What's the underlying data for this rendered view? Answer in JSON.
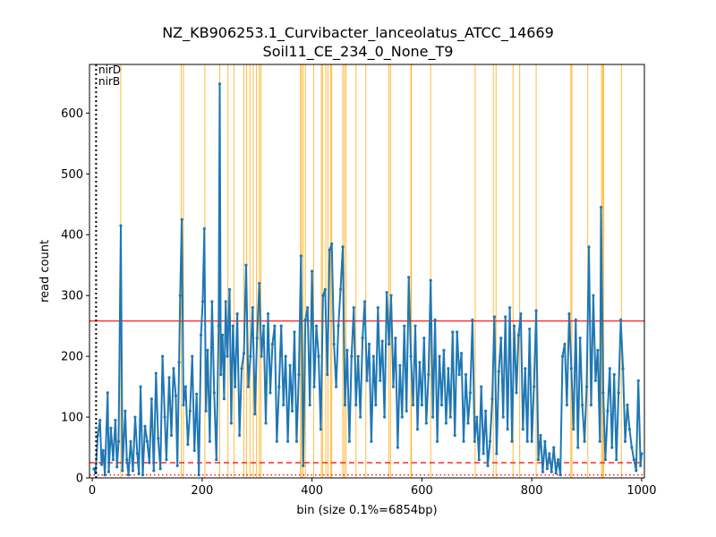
{
  "chart_data": {
    "type": "line",
    "title_lines": [
      "NZ_KB906253.1_Curvibacter_lanceolatus_ATCC_14669",
      "Soil11_CE_234_0_None_T9"
    ],
    "xlabel": "bin (size 0.1%=6854bp)",
    "ylabel": "read count",
    "xlim": [
      -5,
      1005
    ],
    "ylim": [
      0,
      680
    ],
    "xticks": [
      0,
      200,
      400,
      600,
      800,
      1000
    ],
    "yticks": [
      0,
      100,
      200,
      300,
      400,
      500,
      600
    ],
    "grid": false,
    "colors": {
      "series": "#1f77b4",
      "highlight": "#ffa500",
      "threshold": "#ff0000",
      "marker": "#000000"
    },
    "series": [
      {
        "points": [
          [
            3,
            15
          ],
          [
            6,
            8
          ],
          [
            10,
            70
          ],
          [
            14,
            95
          ],
          [
            17,
            22
          ],
          [
            20,
            45
          ],
          [
            23,
            5
          ],
          [
            28,
            140
          ],
          [
            30,
            10
          ],
          [
            34,
            82
          ],
          [
            38,
            30
          ],
          [
            42,
            95
          ],
          [
            45,
            18
          ],
          [
            48,
            60
          ],
          [
            52,
            415
          ],
          [
            55,
            12
          ],
          [
            60,
            110
          ],
          [
            63,
            30
          ],
          [
            66,
            5
          ],
          [
            70,
            60
          ],
          [
            74,
            12
          ],
          [
            78,
            100
          ],
          [
            82,
            40
          ],
          [
            85,
            7
          ],
          [
            88,
            150
          ],
          [
            92,
            5
          ],
          [
            96,
            85
          ],
          [
            100,
            60
          ],
          [
            104,
            25
          ],
          [
            108,
            130
          ],
          [
            112,
            12
          ],
          [
            116,
            172
          ],
          [
            120,
            65
          ],
          [
            124,
            15
          ],
          [
            128,
            200
          ],
          [
            132,
            100
          ],
          [
            135,
            30
          ],
          [
            140,
            165
          ],
          [
            144,
            70
          ],
          [
            148,
            180
          ],
          [
            152,
            135
          ],
          [
            155,
            20
          ],
          [
            158,
            190
          ],
          [
            160,
            300
          ],
          [
            163,
            425
          ],
          [
            166,
            120
          ],
          [
            170,
            150
          ],
          [
            174,
            55
          ],
          [
            178,
            110
          ],
          [
            182,
            200
          ],
          [
            186,
            45
          ],
          [
            190,
            138
          ],
          [
            194,
            5
          ],
          [
            198,
            235
          ],
          [
            201,
            290
          ],
          [
            204,
            410
          ],
          [
            207,
            110
          ],
          [
            210,
            210
          ],
          [
            214,
            60
          ],
          [
            218,
            290
          ],
          [
            222,
            140
          ],
          [
            226,
            30
          ],
          [
            230,
            250
          ],
          [
            232,
            648
          ],
          [
            234,
            170
          ],
          [
            237,
            235
          ],
          [
            240,
            130
          ],
          [
            243,
            290
          ],
          [
            246,
            200
          ],
          [
            250,
            310
          ],
          [
            253,
            90
          ],
          [
            256,
            250
          ],
          [
            260,
            150
          ],
          [
            264,
            270
          ],
          [
            268,
            70
          ],
          [
            272,
            180
          ],
          [
            276,
            205
          ],
          [
            280,
            350
          ],
          [
            284,
            150
          ],
          [
            288,
            200
          ],
          [
            292,
            280
          ],
          [
            296,
            105
          ],
          [
            300,
            230
          ],
          [
            304,
            320
          ],
          [
            308,
            200
          ],
          [
            312,
            250
          ],
          [
            316,
            90
          ],
          [
            320,
            270
          ],
          [
            324,
            140
          ],
          [
            328,
            220
          ],
          [
            332,
            250
          ],
          [
            336,
            60
          ],
          [
            340,
            150
          ],
          [
            344,
            250
          ],
          [
            348,
            120
          ],
          [
            352,
            200
          ],
          [
            356,
            60
          ],
          [
            360,
            185
          ],
          [
            364,
            110
          ],
          [
            368,
            240
          ],
          [
            372,
            60
          ],
          [
            376,
            170
          ],
          [
            380,
            365
          ],
          [
            384,
            20
          ],
          [
            388,
            260
          ],
          [
            392,
            280
          ],
          [
            396,
            120
          ],
          [
            400,
            340
          ],
          [
            404,
            150
          ],
          [
            408,
            250
          ],
          [
            412,
            200
          ],
          [
            416,
            80
          ],
          [
            420,
            300
          ],
          [
            424,
            310
          ],
          [
            428,
            170
          ],
          [
            432,
            375
          ],
          [
            436,
            385
          ],
          [
            440,
            220
          ],
          [
            444,
            150
          ],
          [
            448,
            250
          ],
          [
            452,
            310
          ],
          [
            456,
            380
          ],
          [
            460,
            120
          ],
          [
            464,
            210
          ],
          [
            468,
            60
          ],
          [
            472,
            200
          ],
          [
            476,
            280
          ],
          [
            480,
            120
          ],
          [
            484,
            200
          ],
          [
            488,
            100
          ],
          [
            492,
            230
          ],
          [
            496,
            290
          ],
          [
            500,
            160
          ],
          [
            504,
            220
          ],
          [
            508,
            60
          ],
          [
            512,
            200
          ],
          [
            516,
            120
          ],
          [
            520,
            280
          ],
          [
            524,
            160
          ],
          [
            528,
            225
          ],
          [
            532,
            100
          ],
          [
            536,
            305
          ],
          [
            540,
            220
          ],
          [
            544,
            300
          ],
          [
            548,
            150
          ],
          [
            552,
            230
          ],
          [
            556,
            50
          ],
          [
            560,
            185
          ],
          [
            564,
            100
          ],
          [
            568,
            250
          ],
          [
            572,
            110
          ],
          [
            576,
            330
          ],
          [
            580,
            200
          ],
          [
            584,
            120
          ],
          [
            588,
            250
          ],
          [
            592,
            80
          ],
          [
            596,
            190
          ],
          [
            600,
            120
          ],
          [
            604,
            230
          ],
          [
            608,
            90
          ],
          [
            612,
            170
          ],
          [
            616,
            325
          ],
          [
            620,
            100
          ],
          [
            624,
            260
          ],
          [
            628,
            60
          ],
          [
            632,
            200
          ],
          [
            636,
            120
          ],
          [
            640,
            210
          ],
          [
            644,
            90
          ],
          [
            648,
            180
          ],
          [
            652,
            100
          ],
          [
            656,
            240
          ],
          [
            660,
            70
          ],
          [
            664,
            240
          ],
          [
            668,
            170
          ],
          [
            672,
            205
          ],
          [
            676,
            60
          ],
          [
            680,
            170
          ],
          [
            684,
            90
          ],
          [
            688,
            140
          ],
          [
            692,
            260
          ],
          [
            696,
            60
          ],
          [
            700,
            100
          ],
          [
            704,
            30
          ],
          [
            708,
            150
          ],
          [
            712,
            40
          ],
          [
            716,
            110
          ],
          [
            720,
            20
          ],
          [
            724,
            60
          ],
          [
            728,
            130
          ],
          [
            732,
            265
          ],
          [
            736,
            40
          ],
          [
            740,
            175
          ],
          [
            744,
            230
          ],
          [
            748,
            100
          ],
          [
            752,
            265
          ],
          [
            756,
            80
          ],
          [
            760,
            280
          ],
          [
            764,
            60
          ],
          [
            768,
            250
          ],
          [
            772,
            140
          ],
          [
            776,
            235
          ],
          [
            780,
            270
          ],
          [
            784,
            80
          ],
          [
            788,
            180
          ],
          [
            792,
            60
          ],
          [
            796,
            245
          ],
          [
            800,
            60
          ],
          [
            804,
            150
          ],
          [
            808,
            275
          ],
          [
            812,
            30
          ],
          [
            816,
            70
          ],
          [
            820,
            10
          ],
          [
            824,
            60
          ],
          [
            828,
            15
          ],
          [
            832,
            40
          ],
          [
            836,
            10
          ],
          [
            840,
            50
          ],
          [
            844,
            8
          ],
          [
            848,
            30
          ],
          [
            852,
            5
          ],
          [
            856,
            200
          ],
          [
            860,
            220
          ],
          [
            864,
            120
          ],
          [
            868,
            270
          ],
          [
            872,
            180
          ],
          [
            876,
            80
          ],
          [
            880,
            260
          ],
          [
            884,
            50
          ],
          [
            888,
            230
          ],
          [
            892,
            120
          ],
          [
            896,
            60
          ],
          [
            900,
            150
          ],
          [
            904,
            380
          ],
          [
            908,
            120
          ],
          [
            912,
            300
          ],
          [
            916,
            160
          ],
          [
            920,
            210
          ],
          [
            924,
            60
          ],
          [
            926,
            445
          ],
          [
            930,
            140
          ],
          [
            934,
            30
          ],
          [
            938,
            110
          ],
          [
            942,
            180
          ],
          [
            946,
            50
          ],
          [
            950,
            170
          ],
          [
            954,
            30
          ],
          [
            958,
            140
          ],
          [
            962,
            260
          ],
          [
            966,
            180
          ],
          [
            970,
            60
          ],
          [
            974,
            120
          ],
          [
            978,
            80
          ],
          [
            982,
            50
          ],
          [
            986,
            30
          ],
          [
            990,
            12
          ],
          [
            994,
            160
          ],
          [
            998,
            20
          ],
          [
            1000,
            40
          ]
        ]
      }
    ],
    "highlight_bins": [
      52,
      162,
      166,
      205,
      232,
      247,
      258,
      276,
      281,
      287,
      293,
      299,
      304,
      307,
      379,
      381,
      384,
      388,
      403,
      417,
      419,
      425,
      429,
      434,
      436,
      456,
      459,
      462,
      480,
      498,
      540,
      543,
      580,
      581,
      616,
      697,
      730,
      735,
      766,
      778,
      808,
      871,
      873,
      902,
      927,
      929,
      931,
      963
    ],
    "hlines": [
      {
        "y": 258,
        "style": "solid"
      },
      {
        "y": 25,
        "style": "dashed"
      },
      {
        "y": 5,
        "style": "dotted"
      }
    ],
    "marker_vline": {
      "x": 7
    },
    "gene_labels": [
      "nirD",
      "nirB"
    ]
  }
}
